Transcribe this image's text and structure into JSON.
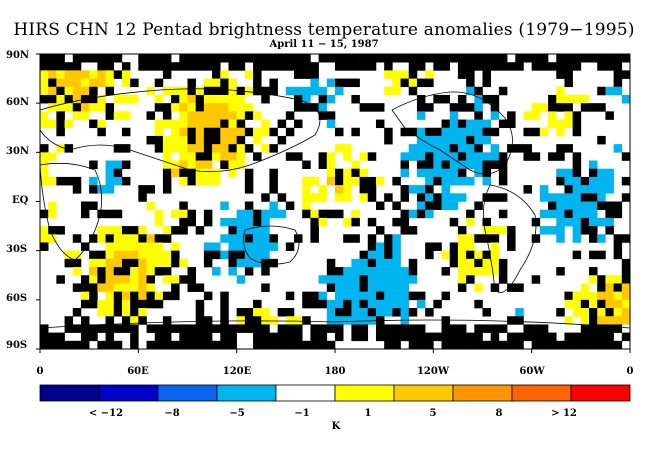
{
  "title": "HIRS CHN 12 Pentad brightness temperature anomalies (1979−1995)",
  "subtitle": "April 11 − 15, 1987",
  "lat_labels": [
    "90N",
    "60N",
    "30N",
    "EQ",
    "30S",
    "60S",
    "90S"
  ],
  "lon_labels": [
    "0",
    "60E",
    "120E",
    "180",
    "120W",
    "60W",
    "0"
  ],
  "colorbar": {
    "colors": [
      "#00008c",
      "#0000c8",
      "#0a64f0",
      "#00b4f0",
      "#ffffff",
      "#ffff00",
      "#ffc800",
      "#ff9600",
      "#ff6400",
      "#ff0000"
    ],
    "labels": [
      "< −12",
      "−8",
      "−5",
      "−1",
      "1",
      "5",
      "8",
      "> 12"
    ],
    "units": "K"
  },
  "colors": {
    "missing": "#000000",
    "strong_cool": "#00b4f0",
    "warm": "#ffff00",
    "warmer": "#ffc800",
    "hot": "#ff6400"
  }
}
